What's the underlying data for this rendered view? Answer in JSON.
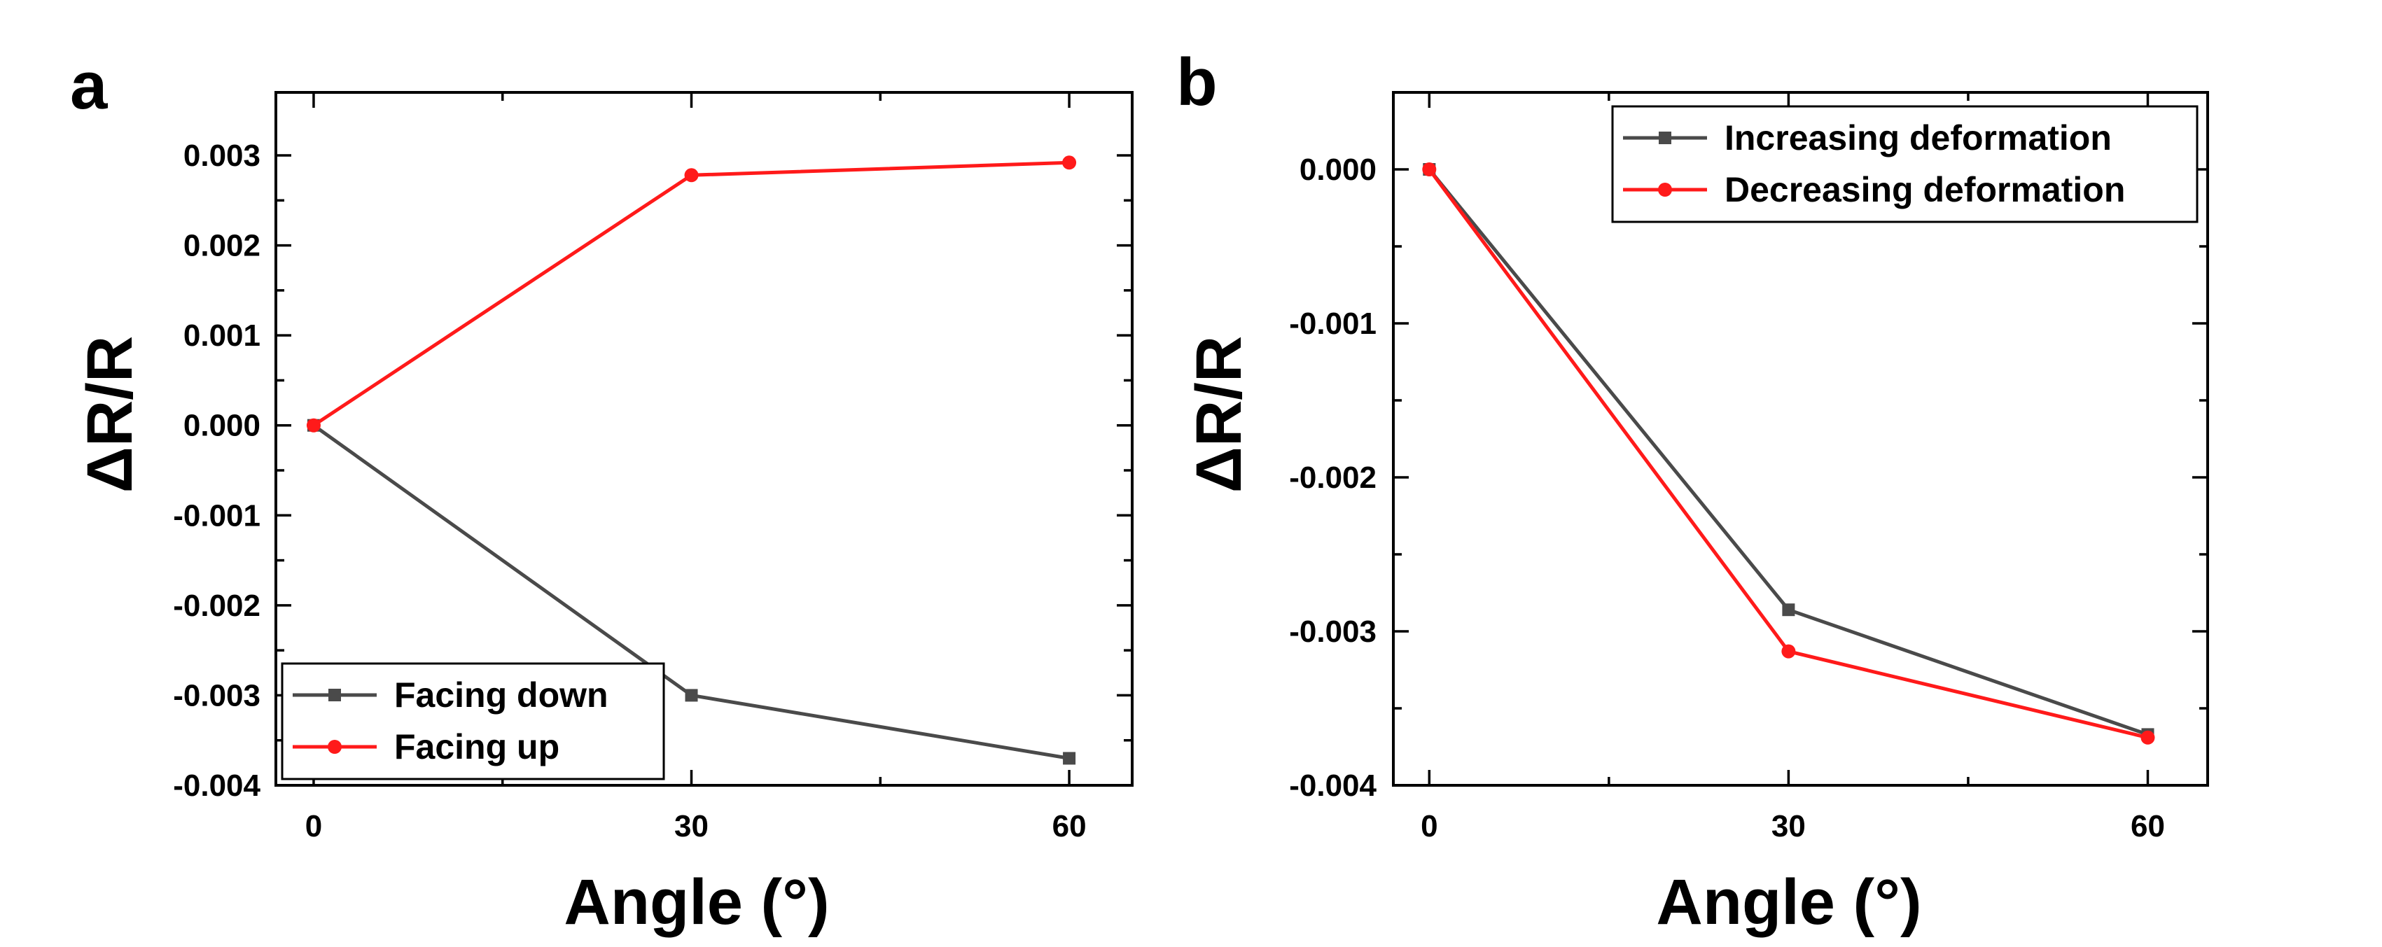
{
  "chart_data": [
    {
      "panel_label": "a",
      "type": "line",
      "title": "",
      "xlabel": "Angle (°)",
      "ylabel": "ΔR/R",
      "x": [
        0,
        30,
        60
      ],
      "xticks": [
        "0",
        "30",
        "60"
      ],
      "xlim": [
        -3,
        65
      ],
      "yticks": [
        "0.003",
        "0.002",
        "0.001",
        "0.000",
        "-0.001",
        "-0.002",
        "-0.003",
        "-0.004"
      ],
      "ylim": [
        -0.004,
        0.0037
      ],
      "series": [
        {
          "name": "Facing down",
          "color": "#4a4a4a",
          "marker": "square",
          "values": [
            0.0,
            -0.003,
            -0.0037
          ]
        },
        {
          "name": "Facing up",
          "color": "#ff1a1a",
          "marker": "circle",
          "values": [
            0.0,
            0.00278,
            0.00292
          ]
        }
      ],
      "legend_position": "bottom-left"
    },
    {
      "panel_label": "b",
      "type": "line",
      "title": "",
      "xlabel": "Angle (°)",
      "ylabel": "ΔR/R",
      "x": [
        0,
        30,
        60
      ],
      "xticks": [
        "0",
        "30",
        "60"
      ],
      "xlim": [
        -3,
        65
      ],
      "yticks": [
        "0.000",
        "-0.001",
        "-0.002",
        "-0.003",
        "-0.004"
      ],
      "ylim": [
        -0.004,
        0.0005
      ],
      "series": [
        {
          "name": "Increasing deformation",
          "color": "#4a4a4a",
          "marker": "square",
          "values": [
            0.0,
            -0.00286,
            -0.00367
          ]
        },
        {
          "name": "Decreasing deformation",
          "color": "#ff1a1a",
          "marker": "circle",
          "values": [
            0.0,
            -0.00313,
            -0.00369
          ]
        }
      ],
      "legend_position": "top-right"
    }
  ]
}
